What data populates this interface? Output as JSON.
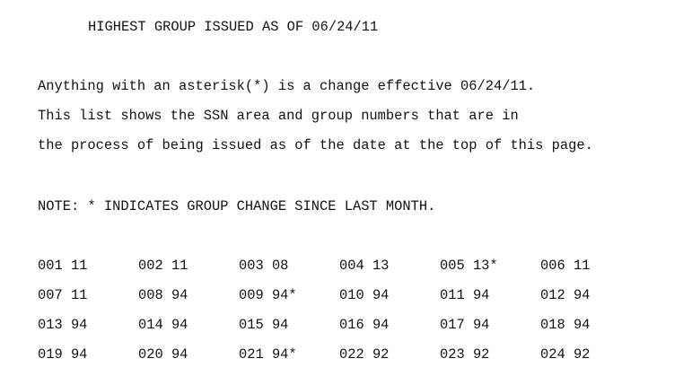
{
  "heading": "HIGHEST GROUP ISSUED AS OF 06/24/11",
  "intro": {
    "line1": "Anything with an asterisk(*) is a change effective 06/24/11.",
    "line2": "This list shows the SSN area and group numbers that are in",
    "line3": "the process of being issued as of the date at the top of this page."
  },
  "note": "NOTE: * INDICATES GROUP CHANGE SINCE LAST MONTH.",
  "groups": [
    [
      "001 11",
      "002 11",
      "003 08",
      "004 13",
      "005 13*",
      "006 11"
    ],
    [
      "007 11",
      "008 94",
      "009 94*",
      "010 94",
      "011 94",
      "012 94"
    ],
    [
      "013 94",
      "014 94",
      "015 94",
      "016 94",
      "017 94",
      "018 94"
    ],
    [
      "019 94",
      "020 94",
      "021 94*",
      "022 92",
      "023 92",
      "024 92"
    ]
  ]
}
